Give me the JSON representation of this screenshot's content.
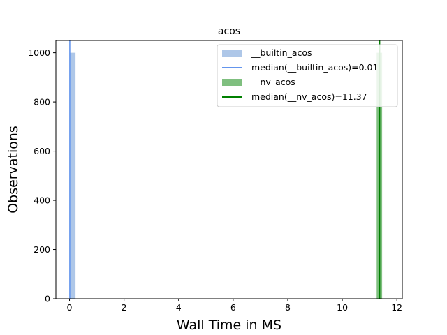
{
  "chart_data": {
    "type": "bar",
    "title": "acos",
    "xlabel": "Wall Time in MS",
    "ylabel": "Observations",
    "xlim": [
      -0.5,
      12.2
    ],
    "ylim": [
      0,
      1050
    ],
    "xticks": [
      "0",
      "2",
      "4",
      "6",
      "8",
      "10",
      "12"
    ],
    "yticks": [
      "0",
      "200",
      "400",
      "600",
      "800",
      "1000"
    ],
    "grid": false,
    "legend_position": "top-right",
    "series": [
      {
        "name": "__builtin_acos",
        "kind": "histogram",
        "color": "#aec7e8",
        "bins": [
          {
            "x0": 0.0,
            "x1": 0.22,
            "count": 1000
          }
        ]
      },
      {
        "name": "median(__builtin_acos)=0.01",
        "kind": "vline",
        "color": "#6495ed",
        "x": 0.01
      },
      {
        "name": "__nv_acos",
        "kind": "histogram",
        "color": "#7fbf7f",
        "bins": [
          {
            "x0": 11.26,
            "x1": 11.46,
            "count": 1000
          }
        ]
      },
      {
        "name": "median(__nv_acos)=11.37",
        "kind": "vline",
        "color": "#008000",
        "x": 11.37
      }
    ]
  }
}
